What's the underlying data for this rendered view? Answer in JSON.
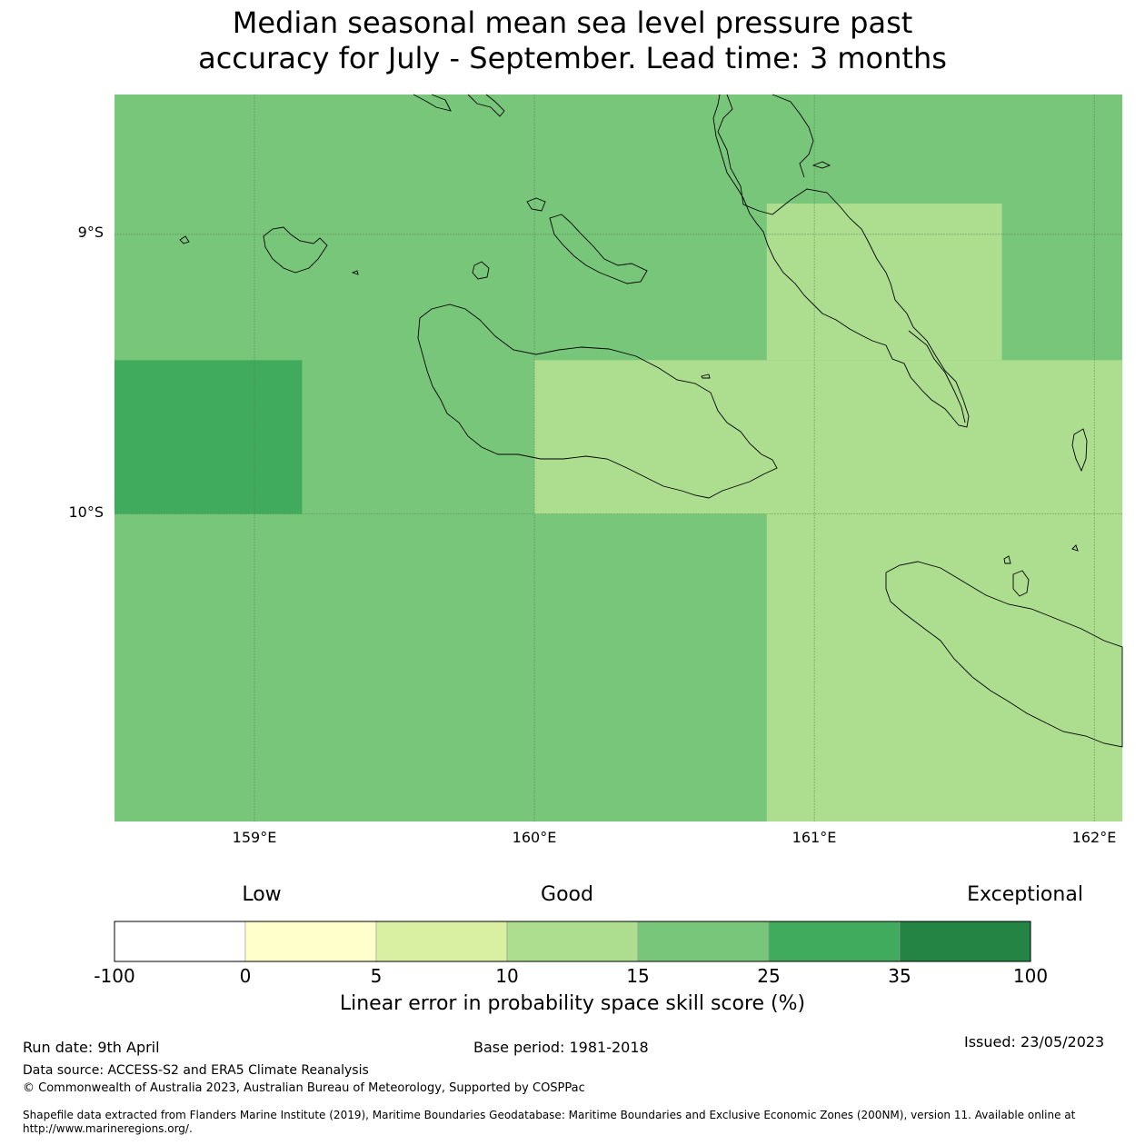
{
  "title": {
    "line1": "Median seasonal mean sea level pressure past",
    "line2": "accuracy for July - September. Lead time: 3 months"
  },
  "map": {
    "lat_labels": [
      "9°S",
      "10°S"
    ],
    "lon_labels": [
      "159°E",
      "160°E",
      "161°E",
      "162°E"
    ],
    "colors": {
      "cat_15_25": "#78c679",
      "cat_10_15": "#addd8e",
      "cat_25_35": "#41ab5d",
      "gridline": "#4a7a4a",
      "coastline": "#000000"
    },
    "lon_range": [
      158.5,
      162.1
    ],
    "lat_range": [
      -8.5,
      -11.1
    ],
    "cells": [
      {
        "lon": [
          158.5,
          162.1
        ],
        "lat": [
          -8.5,
          -11.1
        ],
        "category": "15-25"
      },
      {
        "lon": [
          160.83,
          161.67
        ],
        "lat": [
          -8.89,
          -9.45
        ],
        "category": "10-15"
      },
      {
        "lon": [
          160.0,
          162.1
        ],
        "lat": [
          -9.45,
          -10.0
        ],
        "category": "10-15"
      },
      {
        "lon": [
          160.83,
          162.1
        ],
        "lat": [
          -10.0,
          -11.1
        ],
        "category": "10-15"
      },
      {
        "lon": [
          158.5,
          159.17
        ],
        "lat": [
          -9.45,
          -10.0
        ],
        "category": "25-35"
      }
    ]
  },
  "legend": {
    "category_labels": [
      "Low",
      "Good",
      "Exceptional"
    ],
    "bins": [
      {
        "from": "-100",
        "to": "0",
        "color": "#ffffff"
      },
      {
        "from": "0",
        "to": "5",
        "color": "#ffffcc"
      },
      {
        "from": "5",
        "to": "10",
        "color": "#d9f0a3"
      },
      {
        "from": "10",
        "to": "15",
        "color": "#addd8e"
      },
      {
        "from": "15",
        "to": "25",
        "color": "#78c679"
      },
      {
        "from": "25",
        "to": "35",
        "color": "#41ab5d"
      },
      {
        "from": "35",
        "to": "100",
        "color": "#238443"
      }
    ],
    "tick_labels": [
      "-100",
      "0",
      "5",
      "10",
      "15",
      "25",
      "35",
      "100"
    ],
    "title": "Linear error in probability space skill score (%)"
  },
  "footer": {
    "run_date": "Run date: 9th April",
    "base_period": "Base period: 1981-2018",
    "issued": "Issued: 23/05/2023",
    "data_source": "Data source: ACCESS-S2 and ERA5 Climate Reanalysis",
    "copyright": "© Commonwealth of Australia 2023, Australian Bureau of Meteorology, Supported by COSPPac",
    "shapefile": "Shapefile data extracted from Flanders Marine Institute (2019), Maritime Boundaries Geodatabase: Maritime Boundaries and Exclusive Economic Zones (200NM), version 11. Available online at http://www.marineregions.org/."
  }
}
